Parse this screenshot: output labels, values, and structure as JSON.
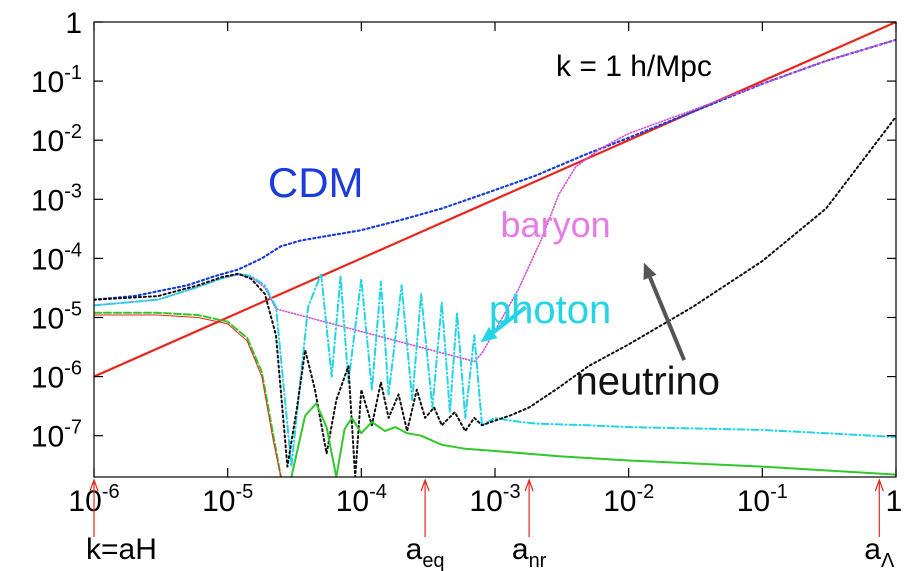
{
  "chart_data": {
    "type": "line",
    "title": "k = 1 h/Mpc",
    "x_scale": "log",
    "y_scale": "log",
    "xlim": [
      1e-06,
      1
    ],
    "ylim": [
      2e-08,
      1
    ],
    "x_ticks": [
      {
        "v": 1e-06,
        "base": "10",
        "exp": "-6"
      },
      {
        "v": 1e-05,
        "base": "10",
        "exp": "-5"
      },
      {
        "v": 0.0001,
        "base": "10",
        "exp": "-4"
      },
      {
        "v": 0.001,
        "base": "10",
        "exp": "-3"
      },
      {
        "v": 0.01,
        "base": "10",
        "exp": "-2"
      },
      {
        "v": 0.1,
        "base": "10",
        "exp": "-1"
      },
      {
        "v": 1,
        "base": "1",
        "exp": ""
      }
    ],
    "y_ticks": [
      {
        "v": 1,
        "base": "1",
        "exp": ""
      },
      {
        "v": 0.1,
        "base": "10",
        "exp": "-1"
      },
      {
        "v": 0.01,
        "base": "10",
        "exp": "-2"
      },
      {
        "v": 0.001,
        "base": "10",
        "exp": "-3"
      },
      {
        "v": 0.0001,
        "base": "10",
        "exp": "-4"
      },
      {
        "v": 1e-05,
        "base": "10",
        "exp": "-5"
      },
      {
        "v": 1e-06,
        "base": "10",
        "exp": "-6"
      },
      {
        "v": 1e-07,
        "base": "10",
        "exp": "-7"
      }
    ],
    "markers": [
      {
        "v": 1e-06,
        "label": "k=aH",
        "sub": ""
      },
      {
        "v": 0.0003,
        "label": "a",
        "sub": "eq"
      },
      {
        "v": 0.0018,
        "label": "a",
        "sub": "nr"
      },
      {
        "v": 0.75,
        "label": "a",
        "sub": "Λ"
      }
    ],
    "series": [
      {
        "name": "",
        "color": "#e8261c",
        "dash": "",
        "width": 2.2,
        "x": [
          1e-06,
          1
        ],
        "y": [
          1e-06,
          1
        ]
      },
      {
        "name": "CDM",
        "color": "#1a3cdf",
        "dash": "2,3",
        "width": 2.2,
        "label_color": "#1a3cdf",
        "x": [
          1e-06,
          2e-06,
          5e-06,
          8e-06,
          1.2e-05,
          1.8e-05,
          2.5e-05,
          3.5e-05,
          5e-05,
          0.0001,
          0.0002,
          0.0004,
          0.0008,
          0.002,
          0.005,
          0.01,
          0.03,
          0.1,
          0.3,
          1
        ],
        "y": [
          2e-05,
          2.3e-05,
          3.5e-05,
          5e-05,
          6.5e-05,
          0.0001,
          0.00016,
          0.0002,
          0.00023,
          0.0003,
          0.00045,
          0.0007,
          0.0012,
          0.0025,
          0.006,
          0.011,
          0.03,
          0.09,
          0.22,
          0.5
        ]
      },
      {
        "name": "baryon",
        "color": "#d44fd4",
        "dash": "1,2",
        "width": 1.6,
        "label_color": "#e87ae8",
        "x": [
          1e-06,
          3e-06,
          6e-06,
          9e-06,
          1.2e-05,
          1.5e-05,
          1.9e-05,
          2.3e-05,
          0.0007,
          0.0008,
          0.001,
          0.0015,
          0.0022,
          0.003,
          0.004,
          0.006,
          0.01,
          0.03,
          0.1,
          0.3,
          1
        ],
        "y": [
          1.6e-05,
          2e-05,
          3.3e-05,
          4.6e-05,
          5.3e-05,
          4.8e-05,
          3.2e-05,
          1.4e-05,
          1.8e-06,
          2.5e-06,
          6e-06,
          3e-05,
          0.0002,
          0.0012,
          0.0035,
          0.007,
          0.013,
          0.032,
          0.09,
          0.22,
          0.5
        ]
      },
      {
        "name": "photon",
        "color": "#22d4e6",
        "dash": "7,3,1,3",
        "width": 2.0,
        "label_color": "#22d4e6",
        "x": [
          1e-06,
          3e-06,
          6e-06,
          9e-06,
          1.2e-05,
          1.5e-05,
          1.9e-05,
          2.3e-05,
          3e-05,
          4e-05,
          5e-05,
          6e-05,
          7e-05,
          8e-05,
          0.0001,
          0.00012,
          0.00014,
          0.00016,
          0.0002,
          0.00024,
          0.00028,
          0.00034,
          0.0004,
          0.00046,
          0.00052,
          0.0006,
          0.0007,
          0.0008,
          0.001,
          0.0013,
          0.002,
          0.005,
          0.01,
          0.05,
          0.1,
          0.3,
          1
        ],
        "y": [
          1.6e-05,
          2e-05,
          3.3e-05,
          4.6e-05,
          5.5e-05,
          5e-05,
          3.5e-05,
          1.5e-05,
          3e-08,
          1.5e-05,
          5.5e-05,
          1e-06,
          5e-05,
          8e-07,
          4.5e-05,
          6e-07,
          4e-05,
          5e-07,
          3.5e-05,
          4e-07,
          2.5e-05,
          3e-07,
          1.8e-05,
          2.5e-07,
          1.2e-05,
          2e-07,
          5e-06,
          1.5e-07,
          2e-07,
          1.8e-07,
          1.6e-07,
          1.5e-07,
          1.4e-07,
          1.3e-07,
          1.25e-07,
          1.1e-07,
          9.5e-08
        ]
      },
      {
        "name": "neutrino",
        "color": "#111111",
        "dash": "2,3",
        "width": 2.0,
        "label_color": "#111111",
        "x": [
          1e-06,
          3e-06,
          6e-06,
          9e-06,
          1.2e-05,
          1.5e-05,
          1.9e-05,
          2.3e-05,
          2.8e-05,
          3.3e-05,
          3.8e-05,
          4.5e-05,
          5.5e-05,
          6.5e-05,
          8e-05,
          9e-05,
          0.0001,
          0.00012,
          0.00014,
          0.00016,
          0.00019,
          0.00022,
          0.00026,
          0.0003,
          0.00035,
          0.0004,
          0.0005,
          0.0006,
          0.0007,
          0.0008,
          0.001,
          0.0013,
          0.0018,
          0.003,
          0.005,
          0.01,
          0.03,
          0.1,
          0.3,
          1
        ],
        "y": [
          2e-05,
          2.3e-05,
          3.5e-05,
          4.8e-05,
          5.5e-05,
          4.5e-05,
          2.5e-05,
          5e-06,
          3e-08,
          3e-07,
          2.8e-06,
          6e-07,
          5e-08,
          4e-07,
          1.5e-06,
          2e-08,
          6e-07,
          1.5e-07,
          8e-07,
          2e-07,
          5e-07,
          1.2e-07,
          6e-07,
          2e-07,
          3e-07,
          1.5e-07,
          2.5e-07,
          1.2e-07,
          2e-07,
          1.5e-07,
          1.8e-07,
          2.2e-07,
          3e-07,
          6.5e-07,
          1.5e-06,
          3.5e-06,
          1.5e-05,
          9e-05,
          0.0007,
          0.025
        ]
      },
      {
        "name": "",
        "color": "#31c82a",
        "dash": "7,3",
        "width": 2.0,
        "x": [
          1e-06,
          3e-06,
          6e-06,
          1e-05,
          1.4e-05,
          1.8e-05,
          2.2e-05,
          2.5e-05
        ],
        "y": [
          1.2e-05,
          1.2e-05,
          1.1e-05,
          8.5e-06,
          4.5e-06,
          1.2e-06,
          1e-07,
          2e-08
        ]
      },
      {
        "name": "",
        "color": "#31c82a",
        "dash": "",
        "width": 2.0,
        "x": [
          3e-05,
          3.8e-05,
          4.6e-05,
          5.5e-05,
          6.5e-05,
          7.5e-05,
          8.5e-05,
          0.0001,
          0.00012,
          0.00015,
          0.00018,
          0.00022,
          0.00028,
          0.0004,
          0.0006,
          0.001,
          0.003,
          0.01,
          0.1,
          1
        ],
        "y": [
          2e-08,
          2.2e-07,
          3.5e-07,
          1.4e-07,
          2e-08,
          1.3e-07,
          2e-07,
          1.1e-07,
          1.7e-07,
          1.2e-07,
          1.4e-07,
          1.1e-07,
          1e-07,
          7e-08,
          6e-08,
          5.5e-08,
          4.5e-08,
          3.8e-08,
          3e-08,
          2.2e-08
        ]
      },
      {
        "name": "",
        "color": "#e8261c",
        "dash": "",
        "width": 1.0,
        "x": [
          1e-06,
          3e-06,
          6e-06,
          1e-05,
          1.4e-05,
          1.8e-05,
          2.2e-05,
          2.5e-05
        ],
        "y": [
          1.1e-05,
          1.1e-05,
          1e-05,
          7.8e-06,
          4e-06,
          1e-06,
          8e-08,
          2e-08
        ]
      }
    ],
    "labels": [
      {
        "text": "CDM",
        "series": "CDM",
        "x": 2e-05,
        "y": 0.0011,
        "size": 42
      },
      {
        "text": "baryon",
        "series": "baryon",
        "x": 0.0011,
        "y": 0.00023,
        "size": 36
      },
      {
        "text": "photon",
        "series": "photon",
        "x": 0.0009,
        "y": 8e-06,
        "size": 40
      },
      {
        "text": "neutrino",
        "series": "neutrino",
        "x": 0.004,
        "y": 5e-07,
        "size": 40
      }
    ],
    "arrows": [
      {
        "from": [
          0.0017,
          1.5e-05
        ],
        "to": [
          0.00078,
          3.8e-06
        ],
        "color": "#22d4e6"
      },
      {
        "from": [
          0.026,
          1.9e-06
        ],
        "to": [
          0.013,
          8.5e-05
        ],
        "color": "#555555"
      }
    ]
  }
}
